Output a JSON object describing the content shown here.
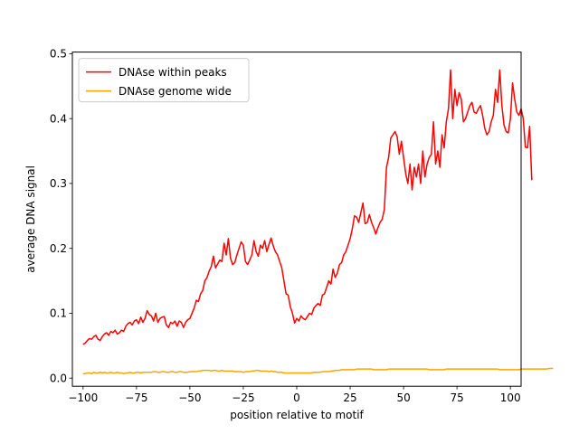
{
  "chart_data": {
    "type": "line",
    "title": "",
    "xlabel": "position relative to motif",
    "ylabel": "average DNA signal",
    "xlim": [
      -105,
      105
    ],
    "ylim": [
      -0.0125,
      0.5025
    ],
    "xticks": [
      -100,
      -75,
      -50,
      -25,
      0,
      25,
      50,
      75,
      100
    ],
    "xtick_labels": [
      "−100",
      "−75",
      "−50",
      "−25",
      "0",
      "25",
      "50",
      "75",
      "100"
    ],
    "yticks": [
      0.0,
      0.1,
      0.2,
      0.3,
      0.4,
      0.5
    ],
    "ytick_labels": [
      "0.0",
      "0.1",
      "0.2",
      "0.3",
      "0.4",
      "0.5"
    ],
    "grid": false,
    "legend_position": "top-left",
    "x_start": -100,
    "x_step": 1,
    "series": [
      {
        "name": "DNAse within peaks",
        "color": "#ff0000",
        "values": [
          0.052,
          0.054,
          0.058,
          0.061,
          0.06,
          0.064,
          0.066,
          0.06,
          0.058,
          0.064,
          0.068,
          0.07,
          0.066,
          0.072,
          0.07,
          0.074,
          0.068,
          0.07,
          0.074,
          0.072,
          0.08,
          0.084,
          0.086,
          0.082,
          0.088,
          0.09,
          0.084,
          0.094,
          0.086,
          0.092,
          0.104,
          0.098,
          0.096,
          0.088,
          0.1,
          0.086,
          0.092,
          0.094,
          0.095,
          0.082,
          0.078,
          0.086,
          0.084,
          0.088,
          0.08,
          0.088,
          0.086,
          0.078,
          0.086,
          0.09,
          0.092,
          0.1,
          0.108,
          0.12,
          0.118,
          0.13,
          0.135,
          0.15,
          0.155,
          0.165,
          0.172,
          0.188,
          0.17,
          0.176,
          0.182,
          0.18,
          0.208,
          0.19,
          0.215,
          0.185,
          0.175,
          0.178,
          0.19,
          0.2,
          0.21,
          0.205,
          0.18,
          0.175,
          0.182,
          0.19,
          0.212,
          0.195,
          0.188,
          0.205,
          0.2,
          0.212,
          0.195,
          0.206,
          0.216,
          0.204,
          0.195,
          0.19,
          0.18,
          0.17,
          0.15,
          0.13,
          0.128,
          0.11,
          0.1,
          0.085,
          0.092,
          0.088,
          0.096,
          0.092,
          0.09,
          0.095,
          0.1,
          0.098,
          0.108,
          0.112,
          0.115,
          0.112,
          0.128,
          0.13,
          0.14,
          0.15,
          0.145,
          0.168,
          0.155,
          0.162,
          0.175,
          0.178,
          0.19,
          0.195,
          0.205,
          0.215,
          0.23,
          0.25,
          0.248,
          0.24,
          0.255,
          0.27,
          0.238,
          0.24,
          0.252,
          0.24,
          0.232,
          0.222,
          0.232,
          0.24,
          0.245,
          0.26,
          0.325,
          0.34,
          0.37,
          0.375,
          0.38,
          0.372,
          0.345,
          0.365,
          0.34,
          0.315,
          0.3,
          0.33,
          0.29,
          0.325,
          0.31,
          0.33,
          0.3,
          0.35,
          0.31,
          0.33,
          0.34,
          0.345,
          0.395,
          0.33,
          0.35,
          0.325,
          0.375,
          0.355,
          0.395,
          0.415,
          0.475,
          0.4,
          0.445,
          0.42,
          0.44,
          0.43,
          0.395,
          0.4,
          0.41,
          0.42,
          0.425,
          0.41,
          0.408,
          0.415,
          0.42,
          0.405,
          0.385,
          0.375,
          0.38,
          0.395,
          0.405,
          0.445,
          0.425,
          0.475,
          0.42,
          0.39,
          0.38,
          0.378,
          0.4,
          0.455,
          0.43,
          0.41,
          0.405,
          0.415,
          0.4,
          0.356,
          0.355,
          0.388,
          0.305
        ],
        "smooth_window": 1
      },
      {
        "name": "DNAse genome wide",
        "color": "#ffa500",
        "values": [
          0.007,
          0.007,
          0.008,
          0.008,
          0.007,
          0.009,
          0.008,
          0.008,
          0.009,
          0.008,
          0.009,
          0.008,
          0.008,
          0.009,
          0.008,
          0.008,
          0.009,
          0.008,
          0.008,
          0.007,
          0.008,
          0.008,
          0.009,
          0.008,
          0.008,
          0.009,
          0.009,
          0.008,
          0.009,
          0.009,
          0.009,
          0.009,
          0.009,
          0.01,
          0.01,
          0.009,
          0.009,
          0.01,
          0.01,
          0.009,
          0.009,
          0.01,
          0.01,
          0.009,
          0.009,
          0.01,
          0.01,
          0.009,
          0.009,
          0.009,
          0.01,
          0.01,
          0.01,
          0.01,
          0.011,
          0.011,
          0.012,
          0.012,
          0.012,
          0.012,
          0.011,
          0.012,
          0.012,
          0.011,
          0.011,
          0.012,
          0.011,
          0.011,
          0.011,
          0.011,
          0.011,
          0.01,
          0.01,
          0.01,
          0.01,
          0.009,
          0.01,
          0.01,
          0.01,
          0.011,
          0.011,
          0.012,
          0.012,
          0.011,
          0.011,
          0.011,
          0.011,
          0.01,
          0.011,
          0.01,
          0.01,
          0.009,
          0.009,
          0.009,
          0.008,
          0.008,
          0.008,
          0.008,
          0.008,
          0.008,
          0.008,
          0.008,
          0.008,
          0.008,
          0.008,
          0.008,
          0.008,
          0.008,
          0.009,
          0.009,
          0.009,
          0.009,
          0.01,
          0.01,
          0.01,
          0.01,
          0.011,
          0.011,
          0.012,
          0.012,
          0.012,
          0.013,
          0.013,
          0.013,
          0.013,
          0.013,
          0.013,
          0.013,
          0.014,
          0.014,
          0.014,
          0.014,
          0.014,
          0.014,
          0.014,
          0.014,
          0.013,
          0.013,
          0.013,
          0.013,
          0.013,
          0.013,
          0.013,
          0.014,
          0.014,
          0.014,
          0.014,
          0.014,
          0.014,
          0.014,
          0.014,
          0.014,
          0.014,
          0.014,
          0.014,
          0.014,
          0.014,
          0.014,
          0.014,
          0.014,
          0.014,
          0.014,
          0.013,
          0.013,
          0.013,
          0.013,
          0.013,
          0.013,
          0.013,
          0.013,
          0.014,
          0.014,
          0.014,
          0.014,
          0.014,
          0.014,
          0.014,
          0.014,
          0.014,
          0.014,
          0.014,
          0.014,
          0.014,
          0.014,
          0.014,
          0.014,
          0.014,
          0.014,
          0.014,
          0.014,
          0.014,
          0.014,
          0.014,
          0.014,
          0.014,
          0.013,
          0.013,
          0.013,
          0.013,
          0.013,
          0.013,
          0.013,
          0.013,
          0.013,
          0.013,
          0.014,
          0.014,
          0.014,
          0.014,
          0.014,
          0.014,
          0.014,
          0.014,
          0.014,
          0.014,
          0.014,
          0.014,
          0.014,
          0.015,
          0.015,
          0.015
        ],
        "smooth_window": 1
      }
    ]
  }
}
